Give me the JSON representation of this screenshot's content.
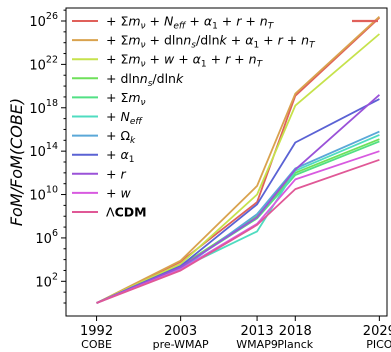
{
  "chart_data": {
    "type": "line",
    "title": "",
    "xlabel": "",
    "ylabel": "FoM/FoM(COBE)",
    "yscale": "log",
    "ylim_exp": [
      0,
      28
    ],
    "xlim": [
      1988,
      2030
    ],
    "grid": false,
    "legend_position": "top-left",
    "x_ticks": [
      {
        "year": 1992,
        "label": "1992",
        "sublabel": "COBE"
      },
      {
        "year": 2003,
        "label": "2003",
        "sublabel": "pre-WMAP"
      },
      {
        "year": 2013,
        "label": "2013",
        "sublabel": "WMAP9"
      },
      {
        "year": 2018,
        "label": "2018",
        "sublabel": "Planck"
      },
      {
        "year": 2029,
        "label": "2029",
        "sublabel": "PICO"
      }
    ],
    "y_ticks": [
      {
        "exp": 2,
        "base": "10",
        "power": "2"
      },
      {
        "exp": 6,
        "base": "10",
        "power": "6"
      },
      {
        "exp": 10,
        "base": "10",
        "power": "10"
      },
      {
        "exp": 14,
        "base": "10",
        "power": "14"
      },
      {
        "exp": 18,
        "base": "10",
        "power": "18"
      },
      {
        "exp": 22,
        "base": "10",
        "power": "22"
      },
      {
        "exp": 26,
        "base": "10",
        "power": "26"
      }
    ],
    "x": [
      1992,
      2003,
      2013,
      2018,
      2029
    ],
    "series": [
      {
        "label": "+ Σm_ν + N_eff + α_1 + r + n_T",
        "color": "#e0605a",
        "log10_values": [
          0,
          3.8,
          9.3,
          19.1,
          26.3
        ]
      },
      {
        "label": "+ Σm_ν + dlnn_s/dlnk + α_1 + r + n_T",
        "color": "#d9a24e",
        "log10_values": [
          0,
          3.9,
          10.8,
          19.3,
          26.4
        ]
      },
      {
        "label": "+ Σm_ν + w + α_1 + r + n_T",
        "color": "#c6e24c",
        "log10_values": [
          0,
          3.6,
          10.0,
          18.2,
          24.8
        ]
      },
      {
        "label": "+ dlnn_s/dlnk",
        "color": "#6fe05a",
        "log10_values": [
          0,
          3.4,
          8.0,
          12.0,
          15.1
        ]
      },
      {
        "label": "+ Σm_ν",
        "color": "#52e084",
        "log10_values": [
          0,
          3.3,
          7.8,
          11.8,
          14.9
        ]
      },
      {
        "label": "+ N_eff",
        "color": "#4fdcc0",
        "log10_values": [
          0,
          3.2,
          6.6,
          12.2,
          15.5
        ]
      },
      {
        "label": "+ Ω_k",
        "color": "#5aa8d8",
        "log10_values": [
          0,
          3.1,
          8.2,
          12.4,
          15.8
        ]
      },
      {
        "label": "+ α_1",
        "color": "#5a62d4",
        "log10_values": [
          0,
          3.4,
          9.1,
          14.8,
          18.8
        ]
      },
      {
        "label": "+ r",
        "color": "#9a52d8",
        "log10_values": [
          0,
          3.3,
          7.9,
          12.3,
          19.2
        ]
      },
      {
        "label": "+ w",
        "color": "#d85ae0",
        "log10_values": [
          0,
          3.1,
          7.3,
          11.4,
          14.0
        ]
      },
      {
        "label": "ΛCDM",
        "color": "#e05896",
        "log10_values": [
          0,
          3.0,
          7.2,
          10.5,
          13.2
        ]
      }
    ],
    "legend": [
      [
        {
          "t": "+ Σ"
        },
        {
          "t": "m",
          "it": 1
        },
        {
          "t": "ν",
          "it": 1,
          "sub": 1
        },
        {
          "t": " + "
        },
        {
          "t": "N",
          "it": 1
        },
        {
          "t": "eff",
          "it": 1,
          "sub": 1
        },
        {
          "t": " + "
        },
        {
          "t": "α",
          "it": 1
        },
        {
          "t": "1",
          "sub": 1
        },
        {
          "t": " + "
        },
        {
          "t": "r",
          "it": 1
        },
        {
          "t": " + "
        },
        {
          "t": "n",
          "it": 1
        },
        {
          "t": "T",
          "it": 1,
          "sub": 1
        }
      ],
      [
        {
          "t": "+ Σ"
        },
        {
          "t": "m",
          "it": 1
        },
        {
          "t": "ν",
          "it": 1,
          "sub": 1
        },
        {
          "t": " + dln"
        },
        {
          "t": "n",
          "it": 1
        },
        {
          "t": "s",
          "it": 1,
          "sub": 1
        },
        {
          "t": "/dln"
        },
        {
          "t": "k",
          "it": 1
        },
        {
          "t": " + "
        },
        {
          "t": "α",
          "it": 1
        },
        {
          "t": "1",
          "sub": 1
        },
        {
          "t": " + "
        },
        {
          "t": "r",
          "it": 1
        },
        {
          "t": " + "
        },
        {
          "t": "n",
          "it": 1
        },
        {
          "t": "T",
          "it": 1,
          "sub": 1
        }
      ],
      [
        {
          "t": "+ Σ"
        },
        {
          "t": "m",
          "it": 1
        },
        {
          "t": "ν",
          "it": 1,
          "sub": 1
        },
        {
          "t": " + "
        },
        {
          "t": "w",
          "it": 1
        },
        {
          "t": " + "
        },
        {
          "t": "α",
          "it": 1
        },
        {
          "t": "1",
          "sub": 1
        },
        {
          "t": " + "
        },
        {
          "t": "r",
          "it": 1
        },
        {
          "t": " + "
        },
        {
          "t": "n",
          "it": 1
        },
        {
          "t": "T",
          "it": 1,
          "sub": 1
        }
      ],
      [
        {
          "t": "+ dln"
        },
        {
          "t": "n",
          "it": 1
        },
        {
          "t": "s",
          "it": 1,
          "sub": 1
        },
        {
          "t": "/dln"
        },
        {
          "t": "k",
          "it": 1
        }
      ],
      [
        {
          "t": "+ Σ"
        },
        {
          "t": "m",
          "it": 1
        },
        {
          "t": "ν",
          "it": 1,
          "sub": 1
        }
      ],
      [
        {
          "t": "+ "
        },
        {
          "t": "N",
          "it": 1
        },
        {
          "t": "eff",
          "it": 1,
          "sub": 1
        }
      ],
      [
        {
          "t": "+ Ω"
        },
        {
          "t": "k",
          "it": 1,
          "sub": 1
        }
      ],
      [
        {
          "t": "+ "
        },
        {
          "t": "α",
          "it": 1
        },
        {
          "t": "1",
          "sub": 1
        }
      ],
      [
        {
          "t": "+ "
        },
        {
          "t": "r",
          "it": 1
        }
      ],
      [
        {
          "t": "+ "
        },
        {
          "t": "w",
          "it": 1
        }
      ],
      [
        {
          "t": "Λ"
        },
        {
          "t": "CDM",
          "b": 1
        }
      ]
    ]
  }
}
